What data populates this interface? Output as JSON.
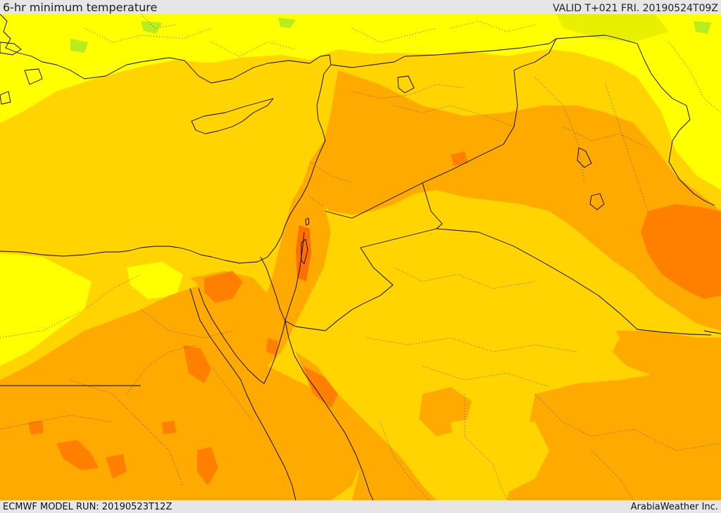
{
  "header": {
    "title": "6-hr minimum temperature",
    "valid": "VALID T+021 FRI. 20190524T09Z"
  },
  "footer": {
    "model_run": "ECMWF MODEL RUN: 20190523T12Z",
    "brand": "ArabiaWeather Inc."
  },
  "map": {
    "field": "6-hr minimum temperature",
    "color_scale": {
      "green": "#9be82a",
      "yellow_green": "#e8f000",
      "yellow": "#ffff00",
      "gold": "#ffd400",
      "orange": "#ffaa00",
      "dark_orange": "#ff8000",
      "red_orange": "#ff6400"
    },
    "border_color": "#000000"
  }
}
